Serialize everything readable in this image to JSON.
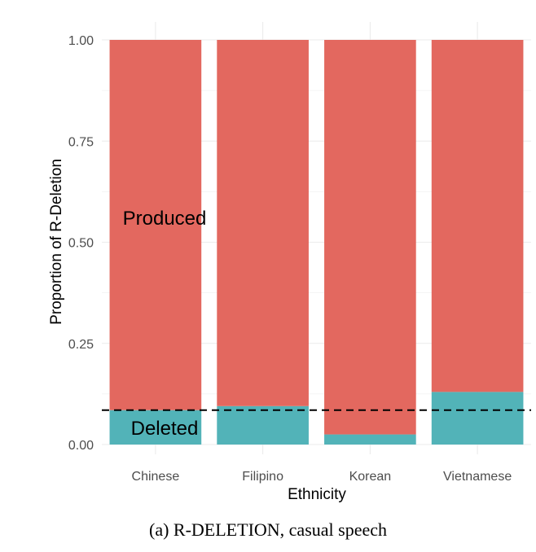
{
  "chart_data": {
    "type": "bar",
    "stacked": true,
    "categories": [
      "Chinese",
      "Filipino",
      "Korean",
      "Vietnamese"
    ],
    "series": [
      {
        "name": "Deleted",
        "values": [
          0.085,
          0.095,
          0.025,
          0.13
        ]
      },
      {
        "name": "Produced",
        "values": [
          0.915,
          0.905,
          0.975,
          0.87
        ]
      }
    ],
    "xlabel": "Ethnicity",
    "ylabel": "Proportion of R-Deletion",
    "ylim": [
      0,
      1
    ],
    "yticks": [
      "0.00",
      "0.25",
      "0.50",
      "0.75",
      "1.00"
    ],
    "reference_line": {
      "y": 0.085,
      "style": "dashed"
    },
    "grid": true,
    "legend": "none",
    "colors": {
      "Deleted": "#52b3b8",
      "Produced": "#e3685f"
    }
  },
  "caption": {
    "label": "(a)",
    "term": "R-DELETION",
    "rest": ", casual speech"
  }
}
